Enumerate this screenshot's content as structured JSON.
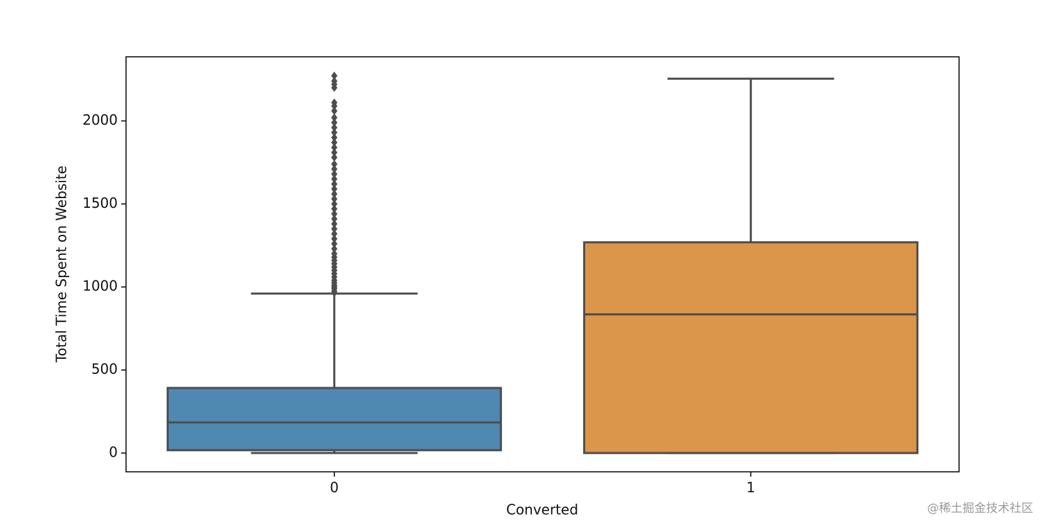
{
  "chart_data": {
    "type": "box",
    "xlabel": "Converted",
    "ylabel": "Total Time Spent on Website",
    "categories": [
      "0",
      "1"
    ],
    "boxes": [
      {
        "whislo": 0,
        "q1": 17,
        "med": 184,
        "q3": 392,
        "whishi": 960,
        "color": "#4f88b0",
        "fliers": [
          965,
          975,
          990,
          1000,
          1010,
          1025,
          1040,
          1060,
          1080,
          1100,
          1120,
          1140,
          1160,
          1180,
          1200,
          1230,
          1260,
          1290,
          1320,
          1350,
          1380,
          1410,
          1440,
          1470,
          1500,
          1530,
          1560,
          1590,
          1620,
          1650,
          1680,
          1710,
          1740,
          1780,
          1810,
          1840,
          1870,
          1900,
          1930,
          1960,
          1990,
          2020,
          2060,
          2090,
          2110,
          2200,
          2220,
          2240,
          2272
        ]
      },
      {
        "whislo": 0,
        "q1": 0,
        "med": 835,
        "q3": 1269,
        "whishi": 2254,
        "color": "#db964b",
        "fliers": []
      }
    ],
    "ylim": [
      -113,
      2386
    ],
    "yticks": [
      0,
      500,
      1000,
      1500,
      2000
    ],
    "edge_color": "#4d4d4d",
    "watermark": "@稀土掘金技术社区"
  }
}
